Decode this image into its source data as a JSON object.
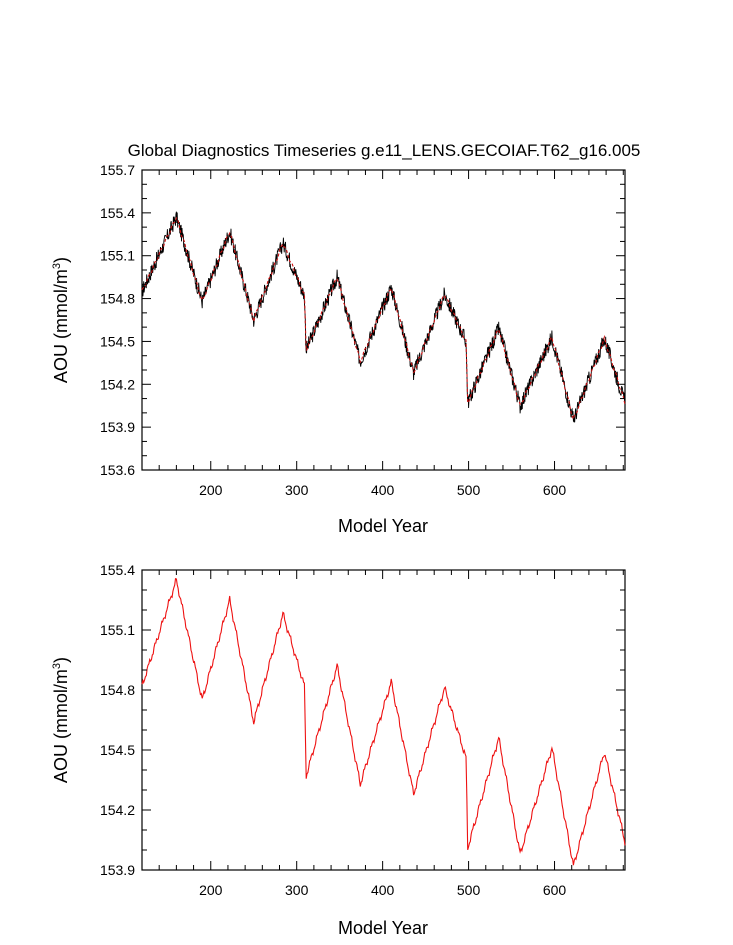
{
  "title": "Global Diagnostics Timeseries g.e11_LENS.GECOIAF.T62_g16.005",
  "chart_data": [
    {
      "type": "line",
      "title": "Global Diagnostics Timeseries g.e11_LENS.GECOIAF.T62_g16.005",
      "xlabel": "Model Year",
      "ylabel_main": "AOU (mmol/m",
      "ylabel_sup": "3",
      "ylabel_close": ")",
      "xlim": [
        120,
        682
      ],
      "ylim": [
        153.6,
        155.7
      ],
      "xticks": [
        200,
        300,
        400,
        500,
        600
      ],
      "xtick_labels": [
        "200",
        "300",
        "400",
        "500",
        "600"
      ],
      "yticks": [
        153.6,
        153.9,
        154.2,
        154.5,
        154.8,
        155.1,
        155.4,
        155.7
      ],
      "ytick_labels": [
        "153.6",
        "153.9",
        "154.2",
        "154.5",
        "154.8",
        "155.1",
        "155.4",
        "155.7"
      ],
      "grid": false,
      "series": [
        {
          "color": "#000000",
          "style": "noisy",
          "noise_amplitude": 0.055,
          "x": [
            120,
            160,
            190,
            222,
            250,
            284,
            309,
            311,
            347,
            374,
            410,
            436,
            472,
            497,
            499,
            535,
            560,
            597,
            622,
            658,
            682
          ],
          "y": [
            154.85,
            155.37,
            154.78,
            155.27,
            154.65,
            155.19,
            154.82,
            154.44,
            154.95,
            154.36,
            154.88,
            154.28,
            154.83,
            154.5,
            154.07,
            154.59,
            154.05,
            154.53,
            153.95,
            154.52,
            154.07
          ]
        },
        {
          "color": "#cc1111",
          "style": "smooth",
          "x": [
            120,
            160,
            190,
            222,
            250,
            284,
            309,
            311,
            347,
            374,
            410,
            436,
            472,
            497,
            499,
            535,
            560,
            597,
            622,
            658,
            682
          ],
          "y": [
            154.85,
            155.37,
            154.78,
            155.27,
            154.65,
            155.19,
            154.82,
            154.44,
            154.95,
            154.36,
            154.88,
            154.28,
            154.83,
            154.5,
            154.07,
            154.59,
            154.05,
            154.53,
            153.95,
            154.52,
            154.07
          ]
        }
      ]
    },
    {
      "type": "line",
      "title": "",
      "xlabel": "Model Year",
      "ylabel_main": "AOU (mmol/m",
      "ylabel_sup": "3",
      "ylabel_close": ")",
      "xlim": [
        120,
        682
      ],
      "ylim": [
        153.9,
        155.4
      ],
      "xticks": [
        200,
        300,
        400,
        500,
        600
      ],
      "xtick_labels": [
        "200",
        "300",
        "400",
        "500",
        "600"
      ],
      "yticks": [
        153.9,
        154.2,
        154.5,
        154.8,
        155.1,
        155.4
      ],
      "ytick_labels": [
        "153.9",
        "154.2",
        "154.5",
        "154.8",
        "155.1",
        "155.4"
      ],
      "grid": false,
      "series": [
        {
          "color": "#ee1111",
          "style": "wiggly",
          "x": [
            120,
            160,
            190,
            222,
            250,
            284,
            309,
            311,
            347,
            374,
            410,
            436,
            472,
            497,
            499,
            535,
            560,
            597,
            622,
            658,
            682
          ],
          "y": [
            154.82,
            155.35,
            154.75,
            155.25,
            154.64,
            155.18,
            154.82,
            154.37,
            154.92,
            154.33,
            154.84,
            154.28,
            154.81,
            154.46,
            154.01,
            154.56,
            153.98,
            154.51,
            153.92,
            154.49,
            154.04
          ]
        }
      ]
    }
  ]
}
